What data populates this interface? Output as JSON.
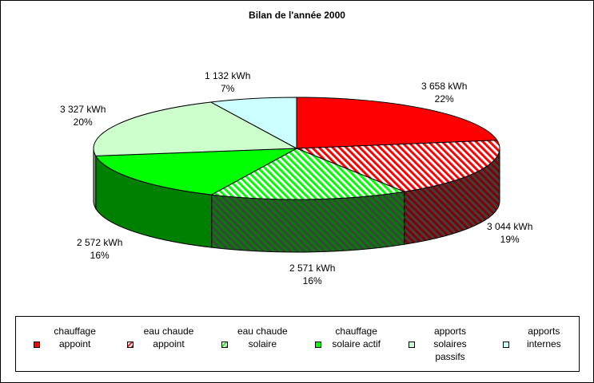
{
  "chart_data": {
    "type": "pie",
    "style": "3d-exploded-none",
    "title": "Bilan de l'année 2000",
    "legend_position": "bottom",
    "slices": [
      {
        "name": "chauffage appoint",
        "legend_lines": [
          "chauffage",
          "appoint"
        ],
        "value": 3658,
        "value_label": "3 658 kWh",
        "percent_label": "22%",
        "color": "#ff0000",
        "dark": "#800000",
        "pattern": "solid"
      },
      {
        "name": "eau chaude appoint",
        "legend_lines": [
          "eau chaude",
          "appoint"
        ],
        "value": 3044,
        "value_label": "3 044 kWh",
        "percent_label": "19%",
        "color": "#ff0000",
        "dark": "#800000",
        "pattern": "hatched"
      },
      {
        "name": "eau chaude solaire",
        "legend_lines": [
          "eau chaude",
          "solaire"
        ],
        "value": 2571,
        "value_label": "2 571 kWh",
        "percent_label": "16%",
        "color": "#00ff00",
        "dark": "#008000",
        "pattern": "hatched"
      },
      {
        "name": "chauffage solaire actif",
        "legend_lines": [
          "chauffage",
          "solaire actif"
        ],
        "value": 2572,
        "value_label": "2 572 kWh",
        "percent_label": "16%",
        "color": "#00ff00",
        "dark": "#008000",
        "pattern": "solid"
      },
      {
        "name": "apports solaires passifs",
        "legend_lines": [
          "apports",
          "solaires",
          "passifs"
        ],
        "value": 3327,
        "value_label": "3 327 kWh",
        "percent_label": "20%",
        "color": "#ccffcc",
        "dark": "#80a080",
        "pattern": "solid"
      },
      {
        "name": "apports internes",
        "legend_lines": [
          "apports",
          "internes"
        ],
        "value": 1132,
        "value_label": "1 132 kWh",
        "percent_label": "7%",
        "color": "#ccffff",
        "dark": "#80a0a0",
        "pattern": "solid"
      }
    ]
  }
}
